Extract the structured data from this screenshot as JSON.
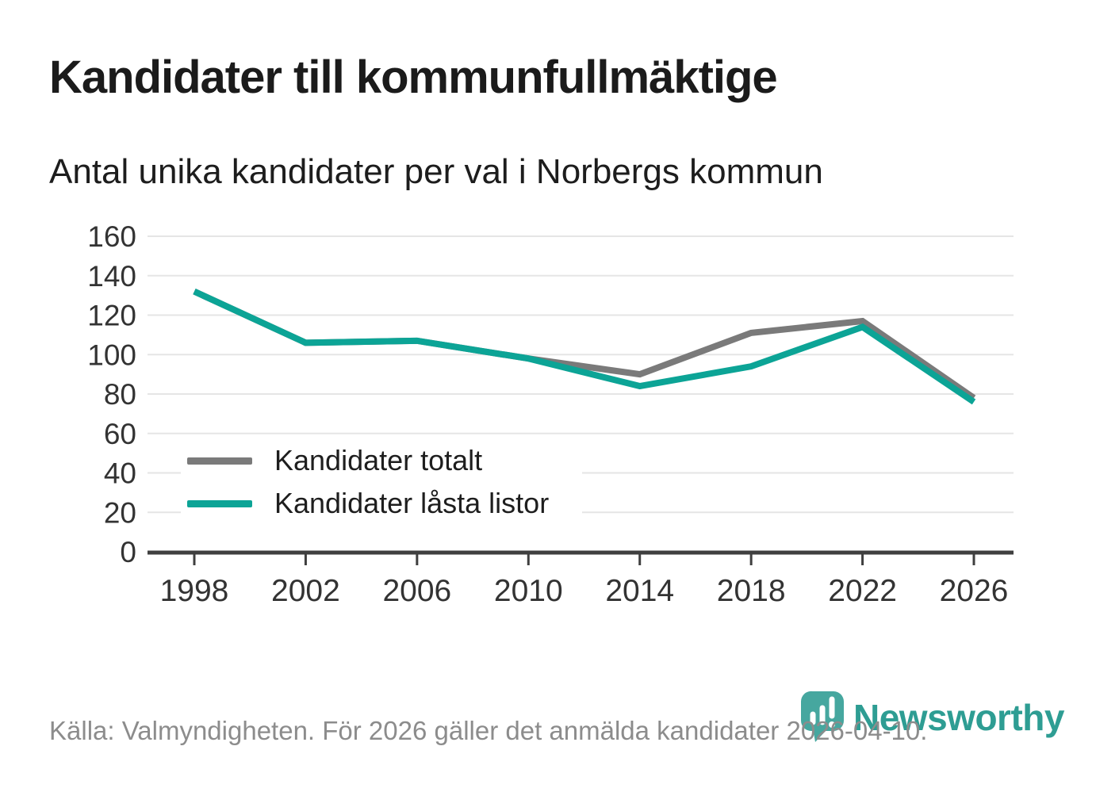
{
  "title": "Kandidater till kommunfullmäktige",
  "subtitle": "Antal unika kandidater per val i Norbergs kommun",
  "footer": {
    "source_text": "Källa: Valmyndigheten. För 2026 gäller det anmälda kandidater 2026-04-10."
  },
  "logo": {
    "wordmark": "Newsworthy",
    "icon": "newsworthy-pin-barchart-icon"
  },
  "colors": {
    "gray": "#7a7a7a",
    "teal": "#0ca496",
    "axis": "#3f3f3f",
    "grid": "#e5e5e5",
    "tick_label": "#333333",
    "logo_pin": "#46a79f",
    "logo_text": "#2e9d93"
  },
  "chart_data": {
    "type": "line",
    "x": [
      1998,
      2002,
      2006,
      2010,
      2014,
      2018,
      2022,
      2026
    ],
    "series": [
      {
        "name": "Kandidater totalt",
        "color_key": "gray",
        "values": [
          132,
          106,
          107,
          98,
          90,
          111,
          117,
          78
        ]
      },
      {
        "name": "Kandidater låsta listor",
        "color_key": "teal",
        "values": [
          132,
          106,
          107,
          98,
          84,
          94,
          114,
          76
        ]
      }
    ],
    "ylim": [
      0,
      160
    ],
    "ytick_step": 20,
    "grid": "horizontal",
    "legend_position": "inside-lower-left",
    "legend_entries": [
      "Kandidater totalt",
      "Kandidater låsta listor"
    ]
  }
}
